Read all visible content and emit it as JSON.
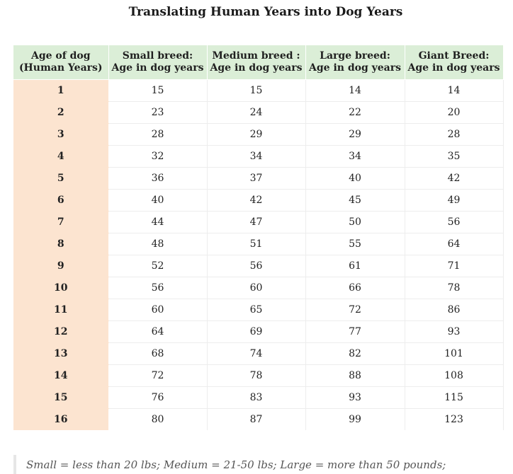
{
  "title": "Translating Human Years into Dog Years",
  "table": {
    "headers": [
      [
        "Age of dog",
        "(Human Years)"
      ],
      [
        "Small breed:",
        "Age in dog years"
      ],
      [
        "Medium breed :",
        "Age in dog years"
      ],
      [
        "Large breed:",
        "Age in dog years"
      ],
      [
        "Giant Breed:",
        "Age in dog years"
      ]
    ],
    "rows": [
      [
        "1",
        "15",
        "15",
        "14",
        "14"
      ],
      [
        "2",
        "23",
        "24",
        "22",
        "20"
      ],
      [
        "3",
        "28",
        "29",
        "29",
        "28"
      ],
      [
        "4",
        "32",
        "34",
        "34",
        "35"
      ],
      [
        "5",
        "36",
        "37",
        "40",
        "42"
      ],
      [
        "6",
        "40",
        "42",
        "45",
        "49"
      ],
      [
        "7",
        "44",
        "47",
        "50",
        "56"
      ],
      [
        "8",
        "48",
        "51",
        "55",
        "64"
      ],
      [
        "9",
        "52",
        "56",
        "61",
        "71"
      ],
      [
        "10",
        "56",
        "60",
        "66",
        "78"
      ],
      [
        "11",
        "60",
        "65",
        "72",
        "86"
      ],
      [
        "12",
        "64",
        "69",
        "77",
        "93"
      ],
      [
        "13",
        "68",
        "74",
        "82",
        "101"
      ],
      [
        "14",
        "72",
        "78",
        "88",
        "108"
      ],
      [
        "15",
        "76",
        "83",
        "93",
        "115"
      ],
      [
        "16",
        "80",
        "87",
        "99",
        "123"
      ]
    ]
  },
  "note": "Small = less than 20 lbs; Medium = 21-50 lbs; Large = more than 50 pounds;",
  "colors": {
    "header_background": "#dbeed7",
    "age_column_background": "#fce4d0"
  }
}
